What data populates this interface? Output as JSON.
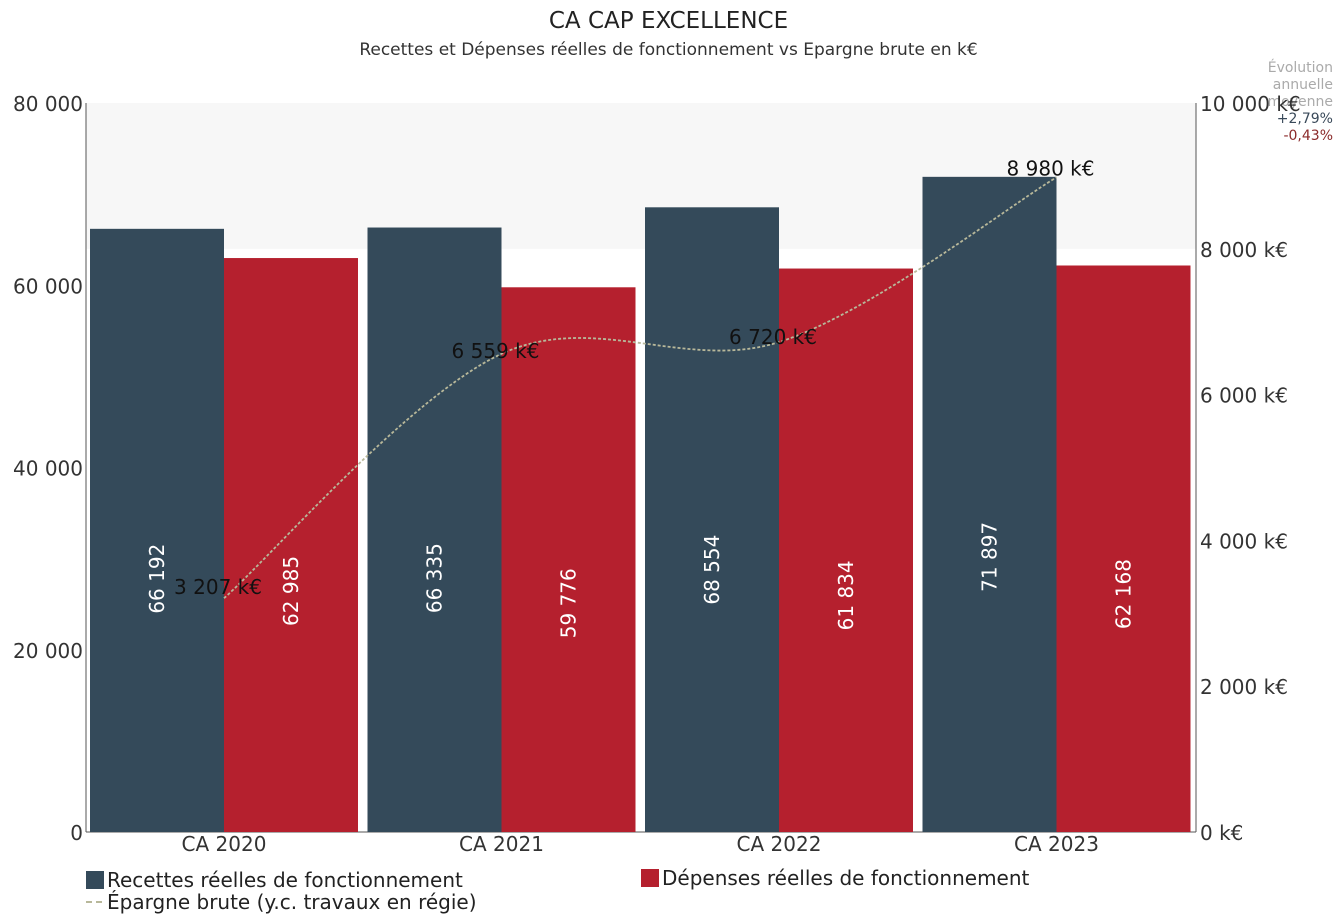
{
  "header": {
    "title": "CA CAP EXCELLENCE",
    "subtitle": "Recettes et Dépenses réelles de fonctionnement vs Epargne brute en k€"
  },
  "evolution": {
    "label_lines": [
      "Évolution",
      "annuelle",
      "moyenne"
    ],
    "recettes": "+2,79%",
    "depenses": "-0,43%",
    "colors": {
      "recettes": "#3a4a5a",
      "depenses": "#8b2a2a"
    }
  },
  "legend": {
    "recettes": "Recettes réelles de fonctionnement",
    "depenses": "Dépenses réelles de fonctionnement",
    "epargne": "Épargne brute (y.c. travaux en régie)"
  },
  "chart_data": {
    "type": "bar",
    "title": "CA CAP EXCELLENCE",
    "subtitle": "Recettes et Dépenses réelles de fonctionnement vs Epargne brute en k€",
    "categories": [
      "CA 2020",
      "CA 2021",
      "CA 2022",
      "CA 2023"
    ],
    "series": [
      {
        "name": "Recettes réelles de fonctionnement",
        "values": [
          66192,
          66335,
          68554,
          71897
        ],
        "labels": [
          "66 192",
          "66 335",
          "68 554",
          "71 897"
        ],
        "color": "#344a5a",
        "axis": "left"
      },
      {
        "name": "Dépenses réelles de fonctionnement",
        "values": [
          62985,
          59776,
          61834,
          62168
        ],
        "labels": [
          "62 985",
          "59 776",
          "61 834",
          "62 168"
        ],
        "color": "#b5202e",
        "axis": "left"
      },
      {
        "name": "Épargne brute (y.c. travaux en régie)",
        "type": "line",
        "values": [
          3207,
          6559,
          6720,
          8980
        ],
        "labels": [
          "3 207 k€",
          "6 559 k€",
          "6 720 k€",
          "8 980 k€"
        ],
        "color": "#b8b89a",
        "axis": "right"
      }
    ],
    "y_left": {
      "ylim": [
        0,
        80000
      ],
      "ticks": [
        0,
        20000,
        40000,
        60000,
        80000
      ],
      "tick_labels": [
        "0",
        "20 000",
        "40 000",
        "60 000",
        "80 000"
      ]
    },
    "y_right": {
      "ylim": [
        0,
        10000
      ],
      "ticks": [
        0,
        2000,
        4000,
        6000,
        8000,
        10000
      ],
      "tick_labels": [
        "0 k€",
        "2 000 k€",
        "4 000 k€",
        "6 000 k€",
        "8 000 k€",
        "10 000 k€"
      ]
    },
    "grid": false,
    "legend_position": "bottom-left"
  }
}
